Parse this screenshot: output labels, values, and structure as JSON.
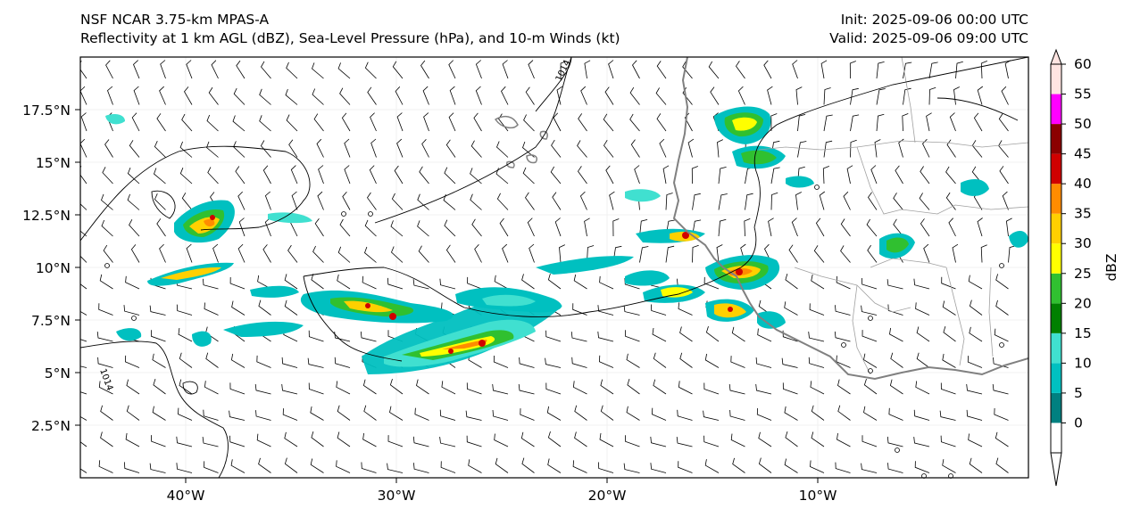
{
  "header": {
    "title_line1": "NSF NCAR 3.75-km MPAS-A",
    "title_line2": "Reflectivity at 1 km AGL (dBZ), Sea-Level Pressure (hPa), and 10-m Winds (kt)",
    "init": "Init: 2025-09-06 00:00 UTC",
    "valid": "Valid: 2025-09-06 09:00 UTC"
  },
  "map": {
    "lon_range": [
      -45,
      0
    ],
    "lat_range": [
      0,
      20
    ],
    "lon_ticks": [
      "40°W",
      "30°W",
      "20°W",
      "10°W"
    ],
    "lat_ticks": [
      "2.5°N",
      "5°N",
      "7.5°N",
      "10°N",
      "12.5°N",
      "15°N",
      "17.5°N"
    ],
    "isobar_labels": [
      "1014",
      "1014"
    ],
    "coast_color": "#808080",
    "isobar_color": "#000000"
  },
  "colorbar": {
    "label": "dBZ",
    "ticks": [
      "0",
      "5",
      "10",
      "15",
      "20",
      "25",
      "30",
      "35",
      "40",
      "45",
      "50",
      "55",
      "60"
    ],
    "colors": [
      "#008080",
      "#00c0c0",
      "#40e0d0",
      "#008000",
      "#30c030",
      "#ffff00",
      "#ffd000",
      "#ff8c00",
      "#d00000",
      "#8b0000",
      "#ff00ff",
      "#ffe4e1"
    ]
  }
}
